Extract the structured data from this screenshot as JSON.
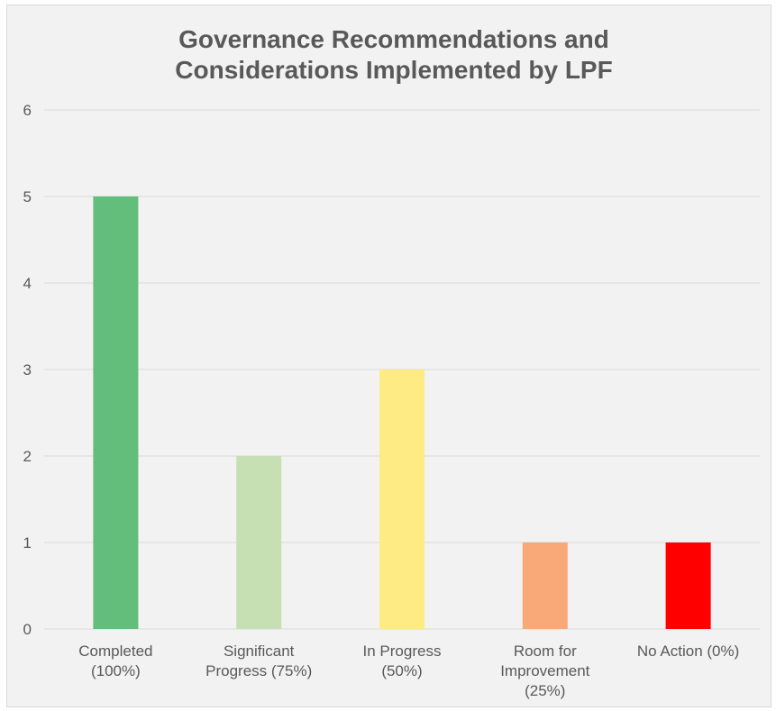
{
  "chart_data": {
    "type": "bar",
    "title": [
      "Governance Recommendations and",
      "Considerations Implemented by LPF"
    ],
    "categories": [
      [
        "Completed",
        "(100%)"
      ],
      [
        "Significant",
        "Progress (75%)"
      ],
      [
        "In Progress",
        "(50%)"
      ],
      [
        "Room for",
        "Improvement",
        "(25%)"
      ],
      [
        "No Action (0%)"
      ]
    ],
    "values": [
      5,
      2,
      3,
      1,
      1
    ],
    "colors": [
      "#63be7b",
      "#c6e0b4",
      "#ffeb84",
      "#f8a977",
      "#ff0000"
    ],
    "ylim": [
      0,
      6
    ],
    "yticks": [
      0,
      1,
      2,
      3,
      4,
      5,
      6
    ],
    "grid": true,
    "legend": "none"
  }
}
